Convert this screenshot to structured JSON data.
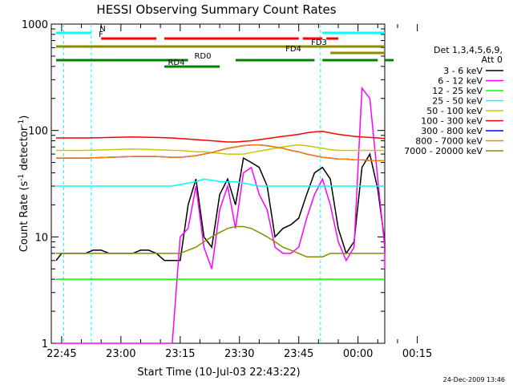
{
  "chart_data": {
    "type": "line",
    "title": "HESSI Observing Summary Count Rates",
    "xlabel": "Start Time (10-Jul-03 22:43:22)",
    "ylabel_main": "Count Rate (s",
    "ylabel_sup1": "-1",
    "ylabel_mid": " detector",
    "ylabel_sup2": "-1",
    "ylabel_end": ")",
    "yscale": "log",
    "ylim": [
      1,
      1000
    ],
    "xlim_minutes": [
      -1.4,
      28.6
    ],
    "x_ticks": [
      {
        "label": "22:45",
        "m": 0
      },
      {
        "label": "23:00",
        "m": 15
      },
      {
        "label": "23:15",
        "m": 30
      },
      {
        "label": "23:30",
        "m": 45
      },
      {
        "label": "23:45",
        "m": 60
      },
      {
        "label": "00:00",
        "m": 75
      },
      {
        "label": "00:15",
        "m": 90
      }
    ],
    "y_ticks": [
      {
        "label": "1",
        "v": 1
      },
      {
        "label": "10",
        "v": 10
      },
      {
        "label": "100",
        "v": 100
      },
      {
        "label": "1000",
        "v": 1000
      }
    ],
    "legend_title_1": "Det 1,3,4,5,6,9,",
    "legend_title_2": "Att 0",
    "series": [
      {
        "name": "3 - 6 keV",
        "color": "#000000",
        "x": [
          -1.4,
          0,
          3,
          6,
          8,
          10,
          12,
          14,
          16,
          18,
          20,
          22,
          24,
          26,
          28,
          30,
          32,
          34,
          36,
          38,
          40,
          42,
          44,
          46,
          48,
          50,
          52,
          54,
          56,
          58,
          60,
          62,
          64,
          66,
          68,
          70,
          72,
          74,
          76,
          78,
          80,
          82,
          84,
          86
        ],
        "y": [
          6,
          7,
          7,
          7,
          7.5,
          7.5,
          7,
          7,
          7,
          7,
          7.5,
          7.5,
          7,
          6,
          6,
          6,
          20,
          35,
          10,
          8,
          25,
          35,
          20,
          55,
          50,
          45,
          30,
          10,
          12,
          13,
          15,
          25,
          40,
          45,
          35,
          12,
          7,
          9,
          45,
          60,
          28,
          9,
          7,
          7
        ]
      },
      {
        "name": "6 - 12 keV",
        "color": "#ff00ff",
        "x": [
          -1.4,
          0,
          3,
          6,
          8,
          10,
          12,
          14,
          16,
          18,
          20,
          22,
          24,
          26,
          28,
          30,
          32,
          34,
          36,
          38,
          40,
          42,
          44,
          46,
          48,
          50,
          52,
          54,
          56,
          58,
          60,
          62,
          64,
          66,
          68,
          70,
          72,
          74,
          76,
          78,
          80,
          82,
          84,
          86
        ],
        "y": [
          1,
          1,
          1,
          1,
          1,
          1,
          1,
          1,
          1,
          1,
          1,
          1,
          1,
          1,
          1,
          10,
          12,
          30,
          8,
          5,
          18,
          30,
          12,
          40,
          45,
          25,
          18,
          8,
          7,
          7,
          8,
          15,
          25,
          35,
          20,
          9,
          6,
          8,
          250,
          200,
          35,
          8,
          6,
          5
        ]
      },
      {
        "name": "12 - 25 keV",
        "color": "#00ff00",
        "x": [
          -1.4,
          0,
          6,
          12,
          18,
          24,
          28,
          30,
          32,
          34,
          36,
          38,
          40,
          42,
          44,
          46,
          48,
          50,
          52,
          54,
          56,
          58,
          60,
          62,
          64,
          66,
          68,
          70,
          72,
          74,
          76,
          78,
          80,
          82,
          84,
          86
        ],
        "y": [
          4,
          4,
          4,
          4,
          4,
          4,
          4,
          4,
          4,
          4,
          4,
          4,
          4,
          4,
          4,
          4,
          4,
          4,
          4,
          4,
          4,
          4,
          4,
          4,
          4,
          4,
          4,
          4,
          4,
          4,
          4,
          4,
          4,
          4,
          4,
          4
        ]
      },
      {
        "name": "25 - 50 keV",
        "color": "#00ffff",
        "x": [
          -1.4,
          0,
          6,
          12,
          18,
          24,
          28,
          30,
          32,
          34,
          36,
          38,
          40,
          42,
          44,
          46,
          48,
          50,
          52,
          54,
          56,
          58,
          60,
          62,
          64,
          66,
          68,
          70,
          72,
          74,
          76,
          78,
          80,
          82,
          84,
          86
        ],
        "y": [
          30,
          30,
          30,
          30,
          30,
          30,
          30,
          31,
          32,
          33,
          35,
          34,
          33,
          33,
          33,
          32,
          31,
          30,
          30,
          30,
          30,
          30,
          30,
          30,
          30,
          30,
          30,
          30,
          30,
          30,
          30,
          30,
          30,
          30,
          30,
          30
        ]
      },
      {
        "name": "50 - 100 keV",
        "color": "#c8c800",
        "x": [
          -1.4,
          0,
          6,
          12,
          18,
          24,
          28,
          30,
          32,
          34,
          36,
          38,
          40,
          42,
          44,
          46,
          48,
          50,
          52,
          54,
          56,
          58,
          60,
          62,
          64,
          66,
          68,
          70,
          72,
          74,
          76,
          78,
          80,
          82,
          84,
          86
        ],
        "y": [
          65,
          65,
          65,
          66,
          67,
          66,
          65,
          65,
          64,
          63,
          63,
          62,
          61,
          60,
          60,
          60,
          62,
          64,
          66,
          68,
          70,
          72,
          73,
          72,
          70,
          68,
          66,
          65,
          65,
          65,
          65,
          65,
          65,
          65,
          65,
          65
        ]
      },
      {
        "name": "100 - 300 keV",
        "color": "#ff0000",
        "x": [
          -1.4,
          0,
          6,
          12,
          18,
          24,
          28,
          30,
          32,
          34,
          36,
          38,
          40,
          42,
          44,
          46,
          48,
          50,
          52,
          54,
          56,
          58,
          60,
          62,
          64,
          66,
          68,
          70,
          72,
          74,
          76,
          78,
          80,
          82,
          84,
          86
        ],
        "y": [
          85,
          85,
          85,
          86,
          87,
          86,
          85,
          84,
          83,
          82,
          81,
          80,
          79,
          78,
          78,
          79,
          80,
          82,
          84,
          86,
          88,
          90,
          92,
          95,
          97,
          98,
          95,
          92,
          90,
          88,
          87,
          86,
          85,
          84,
          84,
          84
        ]
      },
      {
        "name": "300 - 800 keV",
        "color": "#0000ff",
        "x": [
          -1.4,
          0,
          6,
          12,
          18,
          24,
          28,
          30,
          32,
          34,
          36,
          38,
          40,
          42,
          44,
          46,
          48,
          50,
          52,
          54,
          56,
          58,
          60,
          62,
          64,
          66,
          68,
          70,
          72,
          74,
          76,
          78,
          80,
          82,
          84,
          86
        ],
        "y": [
          55,
          55,
          55,
          56,
          57,
          57,
          56,
          56,
          57,
          58,
          60,
          62,
          65,
          68,
          70,
          72,
          73,
          73,
          72,
          70,
          68,
          65,
          63,
          60,
          58,
          56,
          55,
          54,
          54,
          53,
          53,
          52,
          52,
          52,
          52,
          52
        ]
      },
      {
        "name": "800 - 7000 keV",
        "color": "#ff8000",
        "x": [
          -1.4,
          0,
          6,
          12,
          18,
          24,
          28,
          30,
          32,
          34,
          36,
          38,
          40,
          42,
          44,
          46,
          48,
          50,
          52,
          54,
          56,
          58,
          60,
          62,
          64,
          66,
          68,
          70,
          72,
          74,
          76,
          78,
          80,
          82,
          84,
          86
        ],
        "y": [
          55,
          55,
          55,
          56,
          57,
          57,
          56,
          56,
          57,
          58,
          60,
          62,
          65,
          68,
          70,
          72,
          73,
          73,
          72,
          70,
          68,
          65,
          63,
          60,
          58,
          56,
          55,
          54,
          54,
          53,
          53,
          52,
          52,
          52,
          52,
          52
        ]
      },
      {
        "name": "7000 - 20000 keV",
        "color": "#8b8b00",
        "x": [
          -1.4,
          0,
          6,
          12,
          18,
          24,
          28,
          30,
          32,
          34,
          36,
          38,
          40,
          42,
          44,
          46,
          48,
          50,
          52,
          54,
          56,
          58,
          60,
          62,
          64,
          66,
          68,
          70,
          72,
          74,
          76,
          78,
          80,
          82,
          84,
          86
        ],
        "y": [
          7,
          7,
          7,
          7,
          7,
          7,
          7,
          7,
          7.5,
          8,
          9,
          10,
          11,
          12,
          12.5,
          12.5,
          12,
          11,
          10,
          9,
          8,
          7.5,
          7,
          6.5,
          6.5,
          6.5,
          7,
          7,
          7,
          7,
          7,
          7,
          7,
          7,
          7,
          7
        ]
      }
    ],
    "flag_bars": [
      {
        "label": "N",
        "color": "#00ffff",
        "segments": [
          [
            -1.4,
            7.5
          ],
          [
            66,
            86
          ]
        ]
      },
      {
        "label": "F",
        "color": "#ff0000",
        "segments": [
          [
            10,
            24
          ],
          [
            26,
            40
          ],
          [
            40,
            60
          ],
          [
            61,
            66
          ],
          [
            67,
            70
          ]
        ]
      },
      {
        "label": "FD3",
        "color": "#8b8b00",
        "segments": [
          [
            -1.4,
            86
          ]
        ]
      },
      {
        "label": "FD4",
        "color": "#8b8b00",
        "segments": [
          [
            68,
            86
          ]
        ]
      },
      {
        "label": "RD0",
        "color": "#008000",
        "segments": [
          [
            -1.4,
            32
          ],
          [
            44,
            64
          ],
          [
            66,
            80
          ],
          [
            84,
            86
          ]
        ]
      },
      {
        "label": "RD4",
        "color": "#008000",
        "segments": [
          [
            26,
            40
          ]
        ]
      }
    ],
    "vlines_cyan": [
      0.5,
      7.5,
      65.5,
      84.5
    ],
    "timestamp": "24-Dec-2009 13:46"
  }
}
